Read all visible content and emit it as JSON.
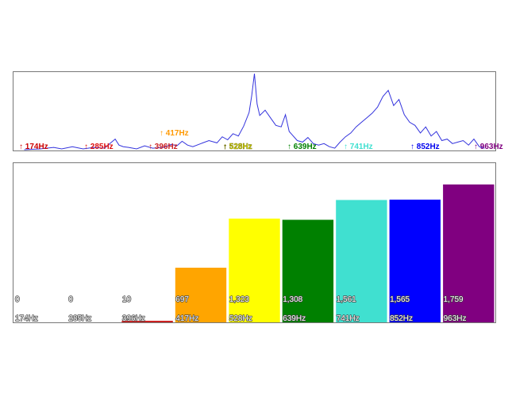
{
  "chart_data": [
    {
      "type": "line",
      "markers": [
        {
          "label": "↑ 174Hz",
          "color": "#cc0000",
          "freq": 174
        },
        {
          "label": "↑ 285Hz",
          "color": "#dd1111",
          "freq": 285
        },
        {
          "label": "↑ 396Hz",
          "color": "#cc2222",
          "freq": 396
        },
        {
          "label": "↑ 417Hz",
          "color": "#ff9900",
          "freq": 417
        },
        {
          "label": "↑ 528Hz",
          "color": "#dddd00",
          "freq": 528
        },
        {
          "label": "↑ 639Hz",
          "color": "#008000",
          "freq": 639
        },
        {
          "label": "↑ 741Hz",
          "color": "#40e0d0",
          "freq": 741
        },
        {
          "label": "↑ 852Hz",
          "color": "#0000ee",
          "freq": 852
        },
        {
          "label": "↑ 963Hz",
          "color": "#800080",
          "freq": 963
        }
      ],
      "series": [
        {
          "color": "#3333dd",
          "x": [
            120,
            150,
            175,
            190,
            210,
            230,
            250,
            270,
            280,
            290,
            297,
            305,
            315,
            330,
            345,
            360,
            380,
            395,
            405,
            415,
            425,
            435,
            450,
            465,
            480,
            490,
            500,
            510,
            520,
            530,
            540,
            545,
            550,
            555,
            560,
            570,
            580,
            590,
            600,
            608,
            615,
            620,
            630,
            640,
            650,
            660,
            670,
            680,
            690,
            700,
            710,
            720,
            730,
            740,
            750,
            760,
            770,
            780,
            790,
            800,
            810,
            820,
            830,
            840,
            850,
            860,
            870,
            880,
            890,
            900,
            910,
            920,
            930,
            940,
            950,
            960,
            970,
            980
          ],
          "y": [
            0,
            1,
            3,
            1,
            4,
            1,
            3,
            2,
            8,
            14,
            6,
            4,
            3,
            1,
            5,
            2,
            3,
            7,
            5,
            11,
            6,
            4,
            8,
            12,
            9,
            17,
            13,
            21,
            18,
            31,
            49,
            71,
            100,
            60,
            45,
            52,
            42,
            32,
            30,
            46,
            24,
            20,
            12,
            10,
            16,
            8,
            6,
            8,
            4,
            2,
            10,
            17,
            22,
            30,
            36,
            42,
            48,
            56,
            70,
            78,
            58,
            66,
            46,
            36,
            32,
            22,
            30,
            18,
            24,
            12,
            14,
            8,
            10,
            12,
            6,
            14,
            4,
            2
          ]
        }
      ],
      "xlim": [
        100,
        1000
      ],
      "ylim": [
        0,
        100
      ]
    },
    {
      "type": "bar",
      "categories": [
        "174Hz",
        "285Hz",
        "396Hz",
        "417Hz",
        "528Hz",
        "639Hz",
        "741Hz",
        "852Hz",
        "963Hz"
      ],
      "values": [
        0,
        0,
        10,
        697,
        1323,
        1308,
        1561,
        1565,
        1759
      ],
      "value_labels": [
        "0",
        "0",
        "10",
        "697",
        "1,323",
        "1,308",
        "1,561",
        "1,565",
        "1,759"
      ],
      "colors": [
        "#cc0000",
        "#dd1111",
        "#cc2222",
        "#ffa500",
        "#ffff00",
        "#008000",
        "#40e0d0",
        "#0000ff",
        "#800080"
      ],
      "ylim": [
        0,
        1970
      ]
    }
  ]
}
